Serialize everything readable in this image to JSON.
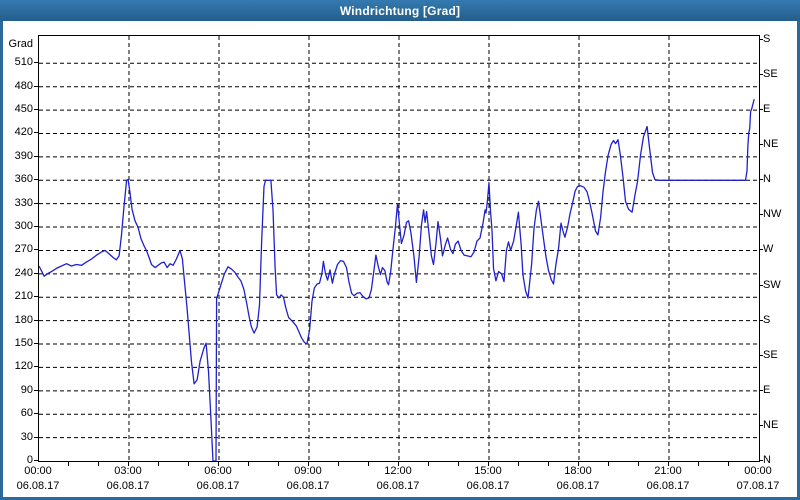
{
  "window": {
    "title": "Windrichtung [Grad]"
  },
  "colors": {
    "frame": "#2b6a9b",
    "titlebar_top": "#347ab0",
    "titlebar_bottom": "#245e8b",
    "title_text": "#ffffff",
    "plot_background": "#ffffff",
    "grid": "#000000",
    "line": "#2121cc",
    "text": "#000000"
  },
  "chart_data": {
    "type": "line",
    "title": "Windrichtung [Grad]",
    "ylabel_left": "Grad",
    "legend": "none",
    "grid": "dashed",
    "ylim": [
      0,
      545
    ],
    "xlim_hours": [
      0,
      24
    ],
    "y_left_ticks": [
      0,
      30,
      60,
      90,
      120,
      150,
      180,
      210,
      240,
      270,
      300,
      330,
      360,
      390,
      420,
      450,
      480,
      510
    ],
    "y_right_ticks": [
      {
        "grad": 0,
        "label": "N"
      },
      {
        "grad": 45,
        "label": "NE"
      },
      {
        "grad": 90,
        "label": "E"
      },
      {
        "grad": 135,
        "label": "SE"
      },
      {
        "grad": 180,
        "label": "S"
      },
      {
        "grad": 225,
        "label": "SW"
      },
      {
        "grad": 270,
        "label": "W"
      },
      {
        "grad": 315,
        "label": "NW"
      },
      {
        "grad": 360,
        "label": "N"
      },
      {
        "grad": 405,
        "label": "NE"
      },
      {
        "grad": 450,
        "label": "E"
      },
      {
        "grad": 495,
        "label": "SE"
      },
      {
        "grad": 540,
        "label": "S"
      }
    ],
    "x_ticks": [
      {
        "hour": 0,
        "time": "00:00",
        "date": "06.08.17"
      },
      {
        "hour": 3,
        "time": "03:00",
        "date": "06.08.17"
      },
      {
        "hour": 6,
        "time": "06:00",
        "date": "06.08.17"
      },
      {
        "hour": 9,
        "time": "09:00",
        "date": "06.08.17"
      },
      {
        "hour": 12,
        "time": "12:00",
        "date": "06.08.17"
      },
      {
        "hour": 15,
        "time": "15:00",
        "date": "06.08.17"
      },
      {
        "hour": 18,
        "time": "18:00",
        "date": "06.08.17"
      },
      {
        "hour": 21,
        "time": "21:00",
        "date": "06.08.17"
      },
      {
        "hour": 24,
        "time": "00:00",
        "date": "07.08.17"
      }
    ],
    "minor_x_tick_every_hours": 1,
    "series": [
      {
        "name": "Windrichtung",
        "points": [
          [
            0,
            250
          ],
          [
            0.08,
            244
          ],
          [
            0.17,
            237
          ],
          [
            0.28,
            240
          ],
          [
            0.42,
            243
          ],
          [
            0.58,
            247
          ],
          [
            0.75,
            250
          ],
          [
            0.92,
            253
          ],
          [
            1.08,
            250
          ],
          [
            1.25,
            252
          ],
          [
            1.42,
            251
          ],
          [
            1.58,
            255
          ],
          [
            1.75,
            259
          ],
          [
            1.92,
            264
          ],
          [
            2.08,
            268
          ],
          [
            2.2,
            270
          ],
          [
            2.33,
            266
          ],
          [
            2.47,
            261
          ],
          [
            2.58,
            258
          ],
          [
            2.67,
            263
          ],
          [
            2.75,
            290
          ],
          [
            2.83,
            325
          ],
          [
            2.92,
            360
          ],
          [
            2.97,
            361
          ],
          [
            3.03,
            345
          ],
          [
            3.1,
            323
          ],
          [
            3.2,
            308
          ],
          [
            3.3,
            300
          ],
          [
            3.4,
            285
          ],
          [
            3.5,
            276
          ],
          [
            3.58,
            270
          ],
          [
            3.67,
            261
          ],
          [
            3.75,
            252
          ],
          [
            3.87,
            248
          ],
          [
            3.97,
            251
          ],
          [
            4.08,
            254
          ],
          [
            4.17,
            255
          ],
          [
            4.27,
            248
          ],
          [
            4.37,
            253
          ],
          [
            4.47,
            251
          ],
          [
            4.58,
            259
          ],
          [
            4.7,
            270
          ],
          [
            4.78,
            259
          ],
          [
            4.85,
            230
          ],
          [
            4.93,
            198
          ],
          [
            5.0,
            166
          ],
          [
            5.08,
            128
          ],
          [
            5.17,
            99
          ],
          [
            5.27,
            104
          ],
          [
            5.37,
            128
          ],
          [
            5.5,
            145
          ],
          [
            5.57,
            151
          ],
          [
            5.65,
            115
          ],
          [
            5.73,
            55
          ],
          [
            5.78,
            15
          ],
          [
            5.8,
            0
          ],
          [
            5.9,
            0
          ],
          [
            5.92,
            208
          ],
          [
            6.0,
            218
          ],
          [
            6.08,
            228
          ],
          [
            6.18,
            240
          ],
          [
            6.3,
            249
          ],
          [
            6.42,
            246
          ],
          [
            6.53,
            242
          ],
          [
            6.63,
            236
          ],
          [
            6.73,
            231
          ],
          [
            6.83,
            220
          ],
          [
            6.92,
            203
          ],
          [
            7.0,
            186
          ],
          [
            7.08,
            172
          ],
          [
            7.17,
            164
          ],
          [
            7.27,
            172
          ],
          [
            7.35,
            200
          ],
          [
            7.42,
            280
          ],
          [
            7.5,
            352
          ],
          [
            7.55,
            360
          ],
          [
            7.73,
            360
          ],
          [
            7.8,
            322
          ],
          [
            7.87,
            248
          ],
          [
            7.92,
            213
          ],
          [
            8.0,
            209
          ],
          [
            8.07,
            213
          ],
          [
            8.15,
            210
          ],
          [
            8.23,
            196
          ],
          [
            8.32,
            184
          ],
          [
            8.45,
            179
          ],
          [
            8.58,
            173
          ],
          [
            8.67,
            165
          ],
          [
            8.75,
            158
          ],
          [
            8.85,
            152
          ],
          [
            8.93,
            150
          ],
          [
            9.02,
            168
          ],
          [
            9.1,
            205
          ],
          [
            9.18,
            222
          ],
          [
            9.27,
            227
          ],
          [
            9.35,
            228
          ],
          [
            9.43,
            240
          ],
          [
            9.48,
            256
          ],
          [
            9.55,
            240
          ],
          [
            9.62,
            232
          ],
          [
            9.7,
            245
          ],
          [
            9.78,
            228
          ],
          [
            9.85,
            240
          ],
          [
            9.95,
            252
          ],
          [
            10.05,
            257
          ],
          [
            10.15,
            256
          ],
          [
            10.25,
            248
          ],
          [
            10.33,
            230
          ],
          [
            10.42,
            215
          ],
          [
            10.5,
            212
          ],
          [
            10.6,
            215
          ],
          [
            10.7,
            216
          ],
          [
            10.8,
            211
          ],
          [
            10.9,
            208
          ],
          [
            11.0,
            209
          ],
          [
            11.08,
            220
          ],
          [
            11.17,
            246
          ],
          [
            11.23,
            264
          ],
          [
            11.3,
            251
          ],
          [
            11.38,
            239
          ],
          [
            11.45,
            248
          ],
          [
            11.53,
            244
          ],
          [
            11.6,
            230
          ],
          [
            11.65,
            226
          ],
          [
            11.72,
            242
          ],
          [
            11.8,
            272
          ],
          [
            11.88,
            300
          ],
          [
            11.95,
            330
          ],
          [
            12.02,
            302
          ],
          [
            12.08,
            279
          ],
          [
            12.17,
            290
          ],
          [
            12.25,
            306
          ],
          [
            12.32,
            308
          ],
          [
            12.4,
            292
          ],
          [
            12.5,
            262
          ],
          [
            12.58,
            229
          ],
          [
            12.67,
            262
          ],
          [
            12.75,
            303
          ],
          [
            12.82,
            322
          ],
          [
            12.87,
            306
          ],
          [
            12.92,
            320
          ],
          [
            13.0,
            292
          ],
          [
            13.08,
            263
          ],
          [
            13.15,
            252
          ],
          [
            13.23,
            278
          ],
          [
            13.3,
            307
          ],
          [
            13.38,
            286
          ],
          [
            13.45,
            263
          ],
          [
            13.55,
            278
          ],
          [
            13.62,
            286
          ],
          [
            13.72,
            271
          ],
          [
            13.8,
            266
          ],
          [
            13.88,
            278
          ],
          [
            13.97,
            282
          ],
          [
            14.07,
            270
          ],
          [
            14.17,
            264
          ],
          [
            14.28,
            263
          ],
          [
            14.4,
            262
          ],
          [
            14.5,
            268
          ],
          [
            14.6,
            282
          ],
          [
            14.7,
            286
          ],
          [
            14.8,
            305
          ],
          [
            14.87,
            322
          ],
          [
            14.9,
            318
          ],
          [
            14.95,
            335
          ],
          [
            15.0,
            357
          ],
          [
            15.05,
            320
          ],
          [
            15.1,
            296
          ],
          [
            15.15,
            247
          ],
          [
            15.23,
            231
          ],
          [
            15.32,
            243
          ],
          [
            15.42,
            240
          ],
          [
            15.5,
            230
          ],
          [
            15.58,
            270
          ],
          [
            15.65,
            281
          ],
          [
            15.72,
            270
          ],
          [
            15.82,
            282
          ],
          [
            15.9,
            300
          ],
          [
            15.98,
            319
          ],
          [
            16.07,
            278
          ],
          [
            16.13,
            239
          ],
          [
            16.22,
            218
          ],
          [
            16.3,
            209
          ],
          [
            16.42,
            252
          ],
          [
            16.5,
            298
          ],
          [
            16.58,
            322
          ],
          [
            16.65,
            333
          ],
          [
            16.73,
            310
          ],
          [
            16.82,
            284
          ],
          [
            16.9,
            262
          ],
          [
            16.98,
            245
          ],
          [
            17.07,
            233
          ],
          [
            17.15,
            227
          ],
          [
            17.23,
            252
          ],
          [
            17.32,
            273
          ],
          [
            17.4,
            305
          ],
          [
            17.48,
            293
          ],
          [
            17.53,
            287
          ],
          [
            17.62,
            300
          ],
          [
            17.7,
            317
          ],
          [
            17.78,
            330
          ],
          [
            17.87,
            346
          ],
          [
            17.95,
            352
          ],
          [
            18.05,
            353
          ],
          [
            18.17,
            351
          ],
          [
            18.27,
            345
          ],
          [
            18.35,
            333
          ],
          [
            18.45,
            315
          ],
          [
            18.55,
            295
          ],
          [
            18.63,
            290
          ],
          [
            18.72,
            312
          ],
          [
            18.8,
            345
          ],
          [
            18.88,
            370
          ],
          [
            18.97,
            392
          ],
          [
            19.07,
            406
          ],
          [
            19.15,
            411
          ],
          [
            19.22,
            407
          ],
          [
            19.3,
            412
          ],
          [
            19.38,
            392
          ],
          [
            19.47,
            363
          ],
          [
            19.55,
            333
          ],
          [
            19.65,
            323
          ],
          [
            19.77,
            319
          ],
          [
            19.87,
            342
          ],
          [
            19.95,
            358
          ],
          [
            20.05,
            392
          ],
          [
            20.15,
            416
          ],
          [
            20.27,
            429
          ],
          [
            20.35,
            402
          ],
          [
            20.45,
            370
          ],
          [
            20.53,
            361
          ],
          [
            20.67,
            360
          ],
          [
            21.0,
            360
          ],
          [
            21.5,
            360
          ],
          [
            22.0,
            360
          ],
          [
            22.5,
            360
          ],
          [
            23.0,
            360
          ],
          [
            23.3,
            360
          ],
          [
            23.55,
            360
          ],
          [
            23.6,
            372
          ],
          [
            23.63,
            405
          ],
          [
            23.66,
            421
          ],
          [
            23.69,
            426
          ],
          [
            23.72,
            448
          ],
          [
            23.76,
            452
          ],
          [
            23.8,
            458
          ],
          [
            23.84,
            464
          ]
        ]
      }
    ]
  }
}
